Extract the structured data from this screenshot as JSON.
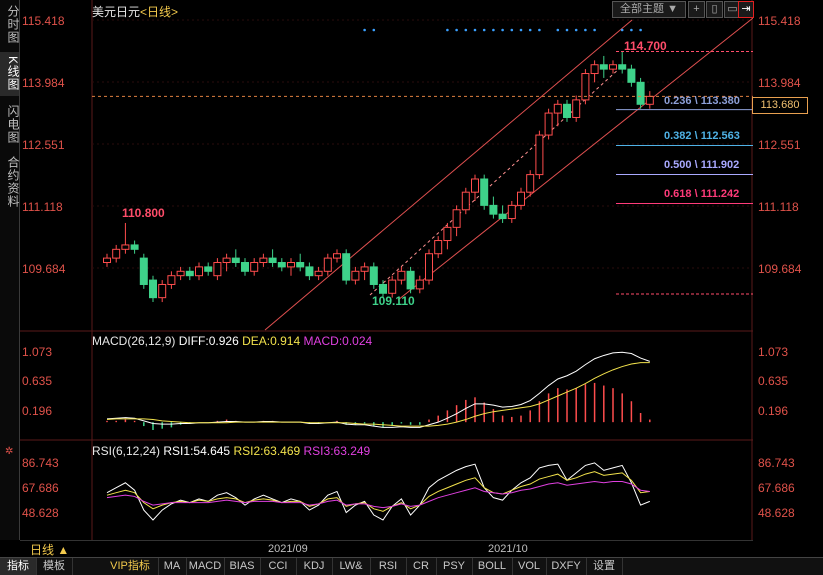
{
  "left_rail": [
    {
      "label": "分时图",
      "active": false
    },
    {
      "label": "K线图",
      "active": true
    },
    {
      "label": "闪电图",
      "active": false
    },
    {
      "label": "合约资料",
      "active": false
    }
  ],
  "symbol": "美元日元",
  "period_tag": "<日线>",
  "toolbar": {
    "theme_label": "全部主题",
    "theme_arrow": "▼"
  },
  "price_axis": {
    "left": [
      "115.418",
      "113.984",
      "112.551",
      "111.118",
      "109.684"
    ],
    "right": [
      "115.418",
      "113.984",
      "112.551",
      "111.118",
      "109.684"
    ]
  },
  "current_price": "113.680",
  "annotations": {
    "high": "110.800",
    "low": "109.110",
    "peak": "114.700"
  },
  "fib_levels": [
    {
      "label": "0.236 \\ 113.380",
      "color": "#8ea0d8"
    },
    {
      "label": "0.382 \\ 112.563",
      "color": "#4fb2e6"
    },
    {
      "label": "0.500 \\ 111.902",
      "color": "#a9a9ff"
    },
    {
      "label": "0.618 \\ 111.242",
      "color": "#ff3b7a"
    }
  ],
  "macd": {
    "title": "MACD(26,12,9)",
    "diff": "DIFF:0.926",
    "dea": "DEA:0.914",
    "macd": "MACD:0.024",
    "axis": [
      "1.073",
      "0.635",
      "0.196"
    ]
  },
  "rsi": {
    "title": "RSI(6,12,24)",
    "rsi1": "RSI1:54.645",
    "rsi2": "RSI2:63.469",
    "rsi3": "RSI3:63.249",
    "axis": [
      "86.743",
      "67.686",
      "48.628"
    ]
  },
  "xaxis": [
    "2021/09",
    "2021/10"
  ],
  "period_button": "日线 ▲",
  "bottom_tabs": [
    "指标",
    "模板",
    "VIP指标",
    "MA",
    "MACD",
    "BIAS",
    "CCI",
    "KDJ",
    "LW&",
    "RSI",
    "CR",
    "PSY",
    "BOLL",
    "VOL",
    "DXFY",
    "设置"
  ],
  "colors": {
    "up": "#ff4d4d",
    "down": "#3ed28a",
    "axis": "#e0524a",
    "grid": "#3a1010"
  },
  "chart_data": {
    "type": "candlestick",
    "candles": [
      {
        "o": 109.9,
        "h": 110.1,
        "l": 109.8,
        "c": 110.0
      },
      {
        "o": 110.0,
        "h": 110.3,
        "l": 109.9,
        "c": 110.2
      },
      {
        "o": 110.2,
        "h": 110.8,
        "l": 110.1,
        "c": 110.3
      },
      {
        "o": 110.3,
        "h": 110.4,
        "l": 110.1,
        "c": 110.2
      },
      {
        "o": 110.0,
        "h": 110.1,
        "l": 109.3,
        "c": 109.4
      },
      {
        "o": 109.5,
        "h": 109.6,
        "l": 109.0,
        "c": 109.1
      },
      {
        "o": 109.1,
        "h": 109.5,
        "l": 109.0,
        "c": 109.4
      },
      {
        "o": 109.4,
        "h": 109.7,
        "l": 109.3,
        "c": 109.6
      },
      {
        "o": 109.6,
        "h": 109.8,
        "l": 109.5,
        "c": 109.7
      },
      {
        "o": 109.7,
        "h": 109.8,
        "l": 109.5,
        "c": 109.6
      },
      {
        "o": 109.6,
        "h": 109.9,
        "l": 109.5,
        "c": 109.8
      },
      {
        "o": 109.8,
        "h": 109.9,
        "l": 109.6,
        "c": 109.7
      },
      {
        "o": 109.6,
        "h": 110.0,
        "l": 109.5,
        "c": 109.9
      },
      {
        "o": 109.9,
        "h": 110.1,
        "l": 109.7,
        "c": 110.0
      },
      {
        "o": 110.0,
        "h": 110.2,
        "l": 109.8,
        "c": 109.9
      },
      {
        "o": 109.9,
        "h": 110.0,
        "l": 109.6,
        "c": 109.7
      },
      {
        "o": 109.7,
        "h": 110.0,
        "l": 109.6,
        "c": 109.9
      },
      {
        "o": 109.9,
        "h": 110.1,
        "l": 109.8,
        "c": 110.0
      },
      {
        "o": 110.0,
        "h": 110.2,
        "l": 109.8,
        "c": 109.9
      },
      {
        "o": 109.9,
        "h": 110.0,
        "l": 109.7,
        "c": 109.8
      },
      {
        "o": 109.8,
        "h": 110.0,
        "l": 109.6,
        "c": 109.9
      },
      {
        "o": 109.9,
        "h": 110.1,
        "l": 109.7,
        "c": 109.8
      },
      {
        "o": 109.8,
        "h": 109.9,
        "l": 109.5,
        "c": 109.6
      },
      {
        "o": 109.6,
        "h": 109.8,
        "l": 109.5,
        "c": 109.7
      },
      {
        "o": 109.7,
        "h": 110.1,
        "l": 109.6,
        "c": 110.0
      },
      {
        "o": 110.0,
        "h": 110.2,
        "l": 109.9,
        "c": 110.1
      },
      {
        "o": 110.1,
        "h": 110.2,
        "l": 109.4,
        "c": 109.5
      },
      {
        "o": 109.5,
        "h": 109.8,
        "l": 109.4,
        "c": 109.7
      },
      {
        "o": 109.7,
        "h": 109.9,
        "l": 109.5,
        "c": 109.8
      },
      {
        "o": 109.8,
        "h": 109.9,
        "l": 109.3,
        "c": 109.4
      },
      {
        "o": 109.4,
        "h": 109.5,
        "l": 109.1,
        "c": 109.2
      },
      {
        "o": 109.2,
        "h": 109.6,
        "l": 109.1,
        "c": 109.5
      },
      {
        "o": 109.5,
        "h": 109.8,
        "l": 109.4,
        "c": 109.7
      },
      {
        "o": 109.7,
        "h": 109.8,
        "l": 109.2,
        "c": 109.3
      },
      {
        "o": 109.3,
        "h": 109.6,
        "l": 109.2,
        "c": 109.5
      },
      {
        "o": 109.5,
        "h": 110.2,
        "l": 109.4,
        "c": 110.1
      },
      {
        "o": 110.1,
        "h": 110.5,
        "l": 110.0,
        "c": 110.4
      },
      {
        "o": 110.4,
        "h": 110.8,
        "l": 110.2,
        "c": 110.7
      },
      {
        "o": 110.7,
        "h": 111.2,
        "l": 110.5,
        "c": 111.1
      },
      {
        "o": 111.1,
        "h": 111.6,
        "l": 111.0,
        "c": 111.5
      },
      {
        "o": 111.5,
        "h": 111.9,
        "l": 111.3,
        "c": 111.8
      },
      {
        "o": 111.8,
        "h": 111.9,
        "l": 111.1,
        "c": 111.2
      },
      {
        "o": 111.2,
        "h": 111.4,
        "l": 110.9,
        "c": 111.0
      },
      {
        "o": 111.0,
        "h": 111.2,
        "l": 110.8,
        "c": 110.9
      },
      {
        "o": 110.9,
        "h": 111.3,
        "l": 110.8,
        "c": 111.2
      },
      {
        "o": 111.2,
        "h": 111.6,
        "l": 111.1,
        "c": 111.5
      },
      {
        "o": 111.5,
        "h": 112.0,
        "l": 111.4,
        "c": 111.9
      },
      {
        "o": 111.9,
        "h": 112.9,
        "l": 111.8,
        "c": 112.8
      },
      {
        "o": 112.8,
        "h": 113.4,
        "l": 112.7,
        "c": 113.3
      },
      {
        "o": 113.3,
        "h": 113.6,
        "l": 113.0,
        "c": 113.5
      },
      {
        "o": 113.5,
        "h": 113.6,
        "l": 113.1,
        "c": 113.2
      },
      {
        "o": 113.2,
        "h": 113.7,
        "l": 113.1,
        "c": 113.6
      },
      {
        "o": 113.6,
        "h": 114.3,
        "l": 113.5,
        "c": 114.2
      },
      {
        "o": 114.2,
        "h": 114.5,
        "l": 114.0,
        "c": 114.4
      },
      {
        "o": 114.4,
        "h": 114.6,
        "l": 114.1,
        "c": 114.3
      },
      {
        "o": 114.3,
        "h": 114.5,
        "l": 114.2,
        "c": 114.4
      },
      {
        "o": 114.4,
        "h": 114.7,
        "l": 114.2,
        "c": 114.3
      },
      {
        "o": 114.3,
        "h": 114.4,
        "l": 113.9,
        "c": 114.0
      },
      {
        "o": 114.0,
        "h": 114.1,
        "l": 113.4,
        "c": 113.5
      },
      {
        "o": 113.5,
        "h": 113.8,
        "l": 113.4,
        "c": 113.68
      }
    ],
    "macd_diff": [
      0.05,
      0.06,
      0.07,
      0.06,
      0.02,
      -0.02,
      -0.03,
      -0.03,
      -0.02,
      -0.02,
      -0.01,
      -0.01,
      0.0,
      0.01,
      0.01,
      0.0,
      0.0,
      0.01,
      0.01,
      0.0,
      0.0,
      0.0,
      -0.02,
      -0.02,
      -0.01,
      0.0,
      -0.03,
      -0.04,
      -0.04,
      -0.06,
      -0.08,
      -0.08,
      -0.07,
      -0.08,
      -0.08,
      -0.04,
      0.0,
      0.06,
      0.13,
      0.21,
      0.28,
      0.28,
      0.26,
      0.23,
      0.24,
      0.27,
      0.33,
      0.44,
      0.56,
      0.66,
      0.71,
      0.78,
      0.88,
      0.97,
      1.02,
      1.06,
      1.07,
      1.05,
      0.98,
      0.93
    ],
    "macd_dea": [
      0.04,
      0.05,
      0.05,
      0.05,
      0.05,
      0.04,
      0.02,
      0.01,
      0.0,
      -0.01,
      -0.01,
      -0.01,
      -0.01,
      -0.01,
      0.0,
      0.0,
      0.0,
      0.0,
      0.0,
      0.0,
      0.0,
      0.0,
      -0.01,
      -0.01,
      -0.01,
      -0.01,
      -0.01,
      -0.02,
      -0.03,
      -0.03,
      -0.04,
      -0.05,
      -0.06,
      -0.06,
      -0.06,
      -0.06,
      -0.05,
      -0.03,
      0.0,
      0.04,
      0.09,
      0.13,
      0.16,
      0.18,
      0.2,
      0.22,
      0.24,
      0.28,
      0.34,
      0.4,
      0.46,
      0.52,
      0.59,
      0.67,
      0.74,
      0.8,
      0.85,
      0.89,
      0.91,
      0.91
    ],
    "rsi1": [
      62,
      66,
      70,
      64,
      48,
      40,
      48,
      53,
      56,
      54,
      57,
      55,
      60,
      62,
      58,
      52,
      57,
      60,
      57,
      54,
      57,
      55,
      48,
      52,
      60,
      63,
      46,
      52,
      55,
      44,
      40,
      51,
      57,
      44,
      52,
      66,
      72,
      76,
      80,
      83,
      85,
      66,
      58,
      56,
      64,
      70,
      74,
      82,
      84,
      85,
      72,
      78,
      84,
      86,
      80,
      82,
      84,
      70,
      52,
      55
    ],
    "rsi2": [
      60,
      62,
      64,
      62,
      54,
      49,
      52,
      54,
      55,
      54,
      56,
      55,
      57,
      58,
      57,
      54,
      56,
      57,
      56,
      54,
      55,
      55,
      51,
      53,
      57,
      58,
      51,
      53,
      54,
      49,
      47,
      51,
      54,
      49,
      52,
      59,
      63,
      66,
      69,
      72,
      74,
      66,
      62,
      61,
      64,
      67,
      69,
      73,
      75,
      77,
      72,
      74,
      77,
      79,
      76,
      77,
      78,
      72,
      62,
      63
    ],
    "rsi3": [
      58,
      59,
      60,
      59,
      55,
      52,
      53,
      54,
      54,
      54,
      54,
      54,
      55,
      56,
      55,
      54,
      55,
      55,
      55,
      54,
      54,
      54,
      52,
      53,
      55,
      56,
      52,
      53,
      53,
      51,
      50,
      51,
      53,
      51,
      52,
      55,
      58,
      60,
      62,
      64,
      66,
      63,
      62,
      61,
      62,
      64,
      65,
      67,
      69,
      70,
      68,
      69,
      70,
      71,
      70,
      71,
      71,
      69,
      64,
      63
    ]
  }
}
